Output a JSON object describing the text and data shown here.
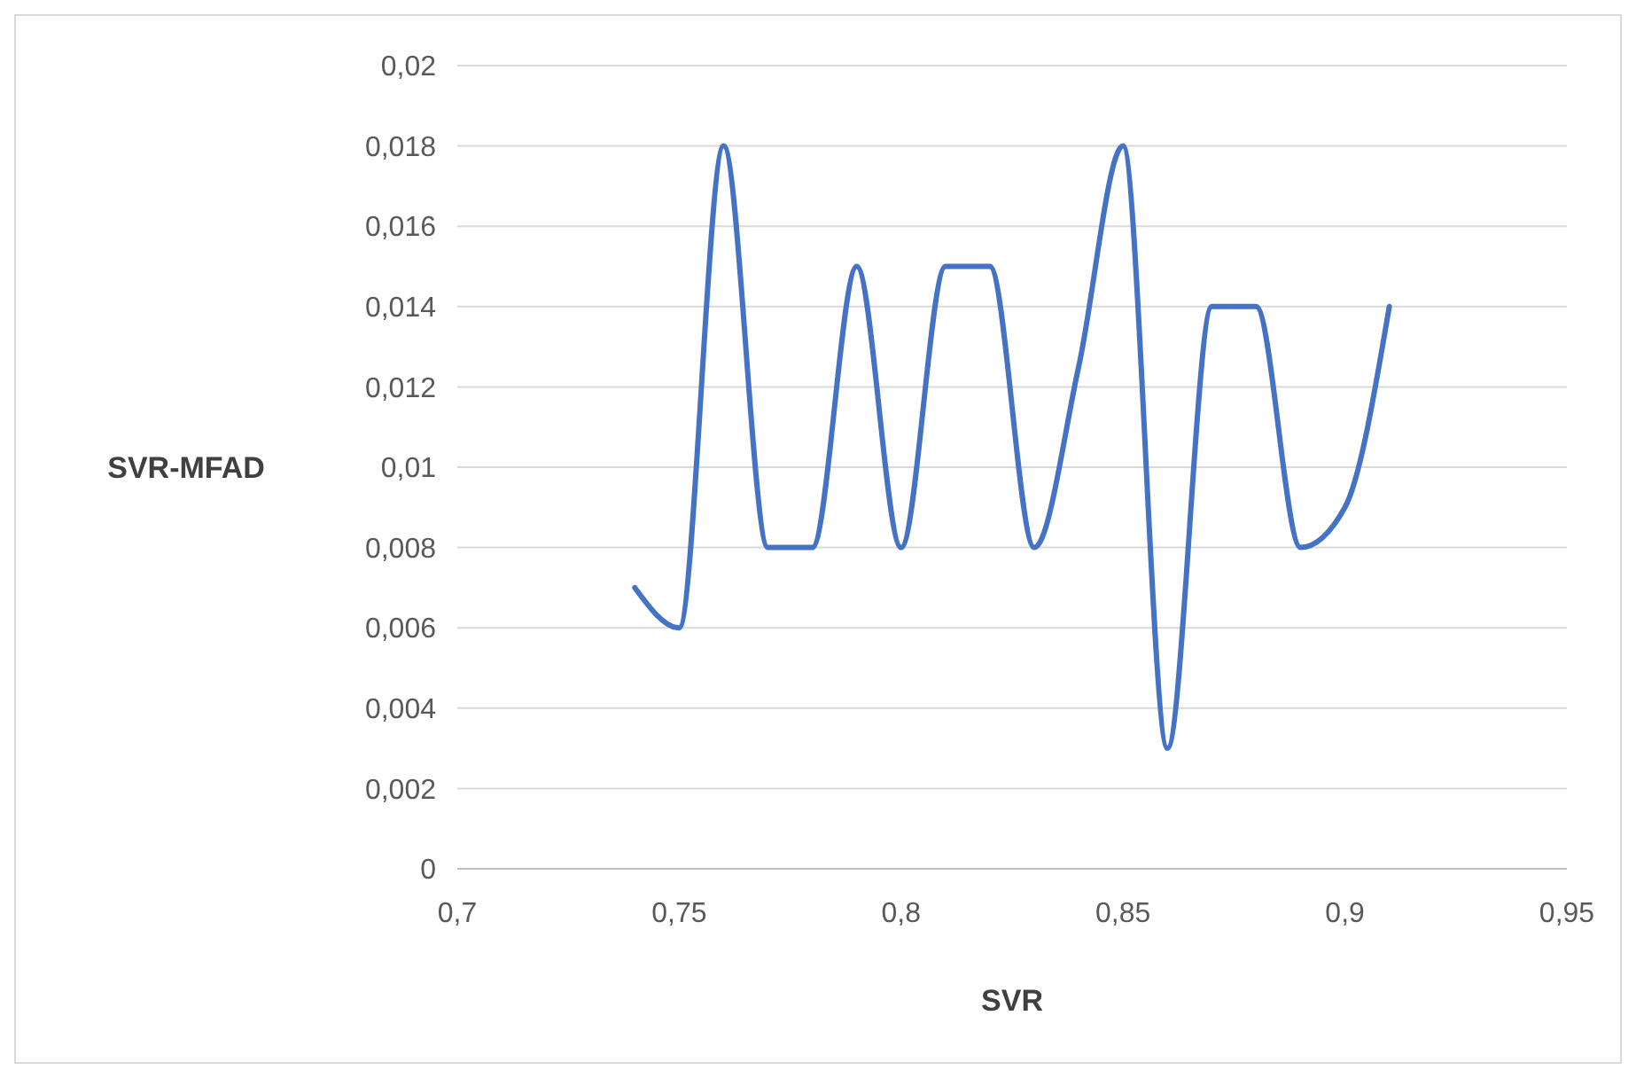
{
  "chart_data": {
    "type": "line",
    "xlabel": "SVR",
    "ylabel": "SVR-MFAD",
    "x": [
      0.74,
      0.75,
      0.76,
      0.77,
      0.78,
      0.79,
      0.8,
      0.81,
      0.82,
      0.83,
      0.84,
      0.85,
      0.86,
      0.87,
      0.88,
      0.89,
      0.9,
      0.91
    ],
    "series": [
      {
        "color": "#4472c4",
        "values": [
          0.007,
          0.006,
          0.018,
          0.008,
          0.008,
          0.015,
          0.008,
          0.015,
          0.015,
          0.008,
          0.0125,
          0.018,
          0.003,
          0.014,
          0.014,
          0.008,
          0.009,
          0.014
        ]
      }
    ],
    "xlim": [
      0.7,
      0.95
    ],
    "xticks": [
      {
        "value": 0.7,
        "label": "0,7"
      },
      {
        "value": 0.75,
        "label": "0,75"
      },
      {
        "value": 0.8,
        "label": "0,8"
      },
      {
        "value": 0.85,
        "label": "0,85"
      },
      {
        "value": 0.9,
        "label": "0,9"
      },
      {
        "value": 0.95,
        "label": "0,95"
      }
    ],
    "ylim": [
      0,
      0.02
    ],
    "yticks": [
      0,
      {
        "value": 0.002,
        "label": "0,002"
      },
      {
        "value": 0.004,
        "label": "0,004"
      },
      {
        "value": 0.006,
        "label": "0,006"
      },
      {
        "value": 0.008,
        "label": "0,008"
      },
      {
        "value": 0.01,
        "label": "0,01"
      },
      {
        "value": 0.012,
        "label": "0,012"
      },
      {
        "value": 0.014,
        "label": "0,014"
      },
      {
        "value": 0.016,
        "label": "0,016"
      },
      {
        "value": 0.018,
        "label": "0,018"
      },
      {
        "value": 0.02,
        "label": "0,02"
      }
    ],
    "grid": "y",
    "marker": "none",
    "line_style": "solid"
  }
}
